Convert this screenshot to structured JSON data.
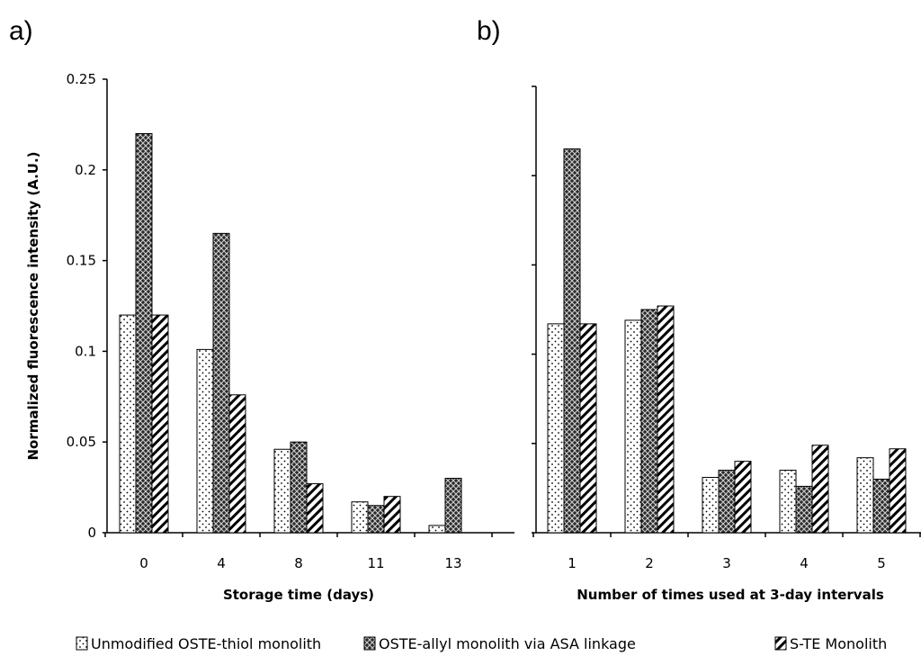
{
  "chart_data": [
    {
      "type": "bar",
      "panel_label": "a)",
      "title": "",
      "xlabel": "Storage time (days)",
      "ylabel": "Normalized fluorescence intensity (A.U.)",
      "ylim": [
        0,
        0.25
      ],
      "yticks": [
        "0",
        "0.05",
        "0.1",
        "0.15",
        "0.2",
        "0.25"
      ],
      "yticks_values": [
        0,
        0.05,
        0.1,
        0.15,
        0.2,
        0.25
      ],
      "categories": [
        "0",
        "4",
        "8",
        "11",
        "13"
      ],
      "series": [
        {
          "name": "Unmodified OSTE-thiol monolith",
          "values": [
            0.12,
            0.101,
            0.046,
            0.017,
            0.004
          ]
        },
        {
          "name": "OSTE-allyl monolith via ASA linkage",
          "values": [
            0.22,
            0.165,
            0.05,
            0.015,
            0.03
          ]
        },
        {
          "name": "S-TE Monolith",
          "values": [
            0.12,
            0.076,
            0.027,
            0.02,
            0
          ]
        }
      ],
      "grid": false
    },
    {
      "type": "bar",
      "panel_label": "b)",
      "title": "",
      "xlabel": "Number of times used at 3-day intervals",
      "ylabel": "",
      "ylim": [
        0,
        0.25
      ],
      "yticks_values": [
        0,
        0.05,
        0.1,
        0.15,
        0.2,
        0.25
      ],
      "categories": [
        "1",
        "2",
        "3",
        "4",
        "5"
      ],
      "series": [
        {
          "name": "Unmodified OSTE-thiol monolith",
          "values": [
            0.117,
            0.119,
            0.031,
            0.035,
            0.042
          ]
        },
        {
          "name": "OSTE-allyl monolith via ASA linkage",
          "values": [
            0.215,
            0.125,
            0.035,
            0.026,
            0.03
          ]
        },
        {
          "name": "S-TE Monolith",
          "values": [
            0.117,
            0.127,
            0.04,
            0.049,
            0.047
          ]
        }
      ],
      "grid": false
    }
  ],
  "legend": {
    "placement": "bottom",
    "items": [
      {
        "label": "Unmodified OSTE-thiol monolith",
        "pattern": "dots"
      },
      {
        "label": "OSTE-allyl monolith via ASA linkage",
        "pattern": "crosshatch"
      },
      {
        "label": "S-TE Monolith",
        "pattern": "diagonal"
      }
    ]
  }
}
